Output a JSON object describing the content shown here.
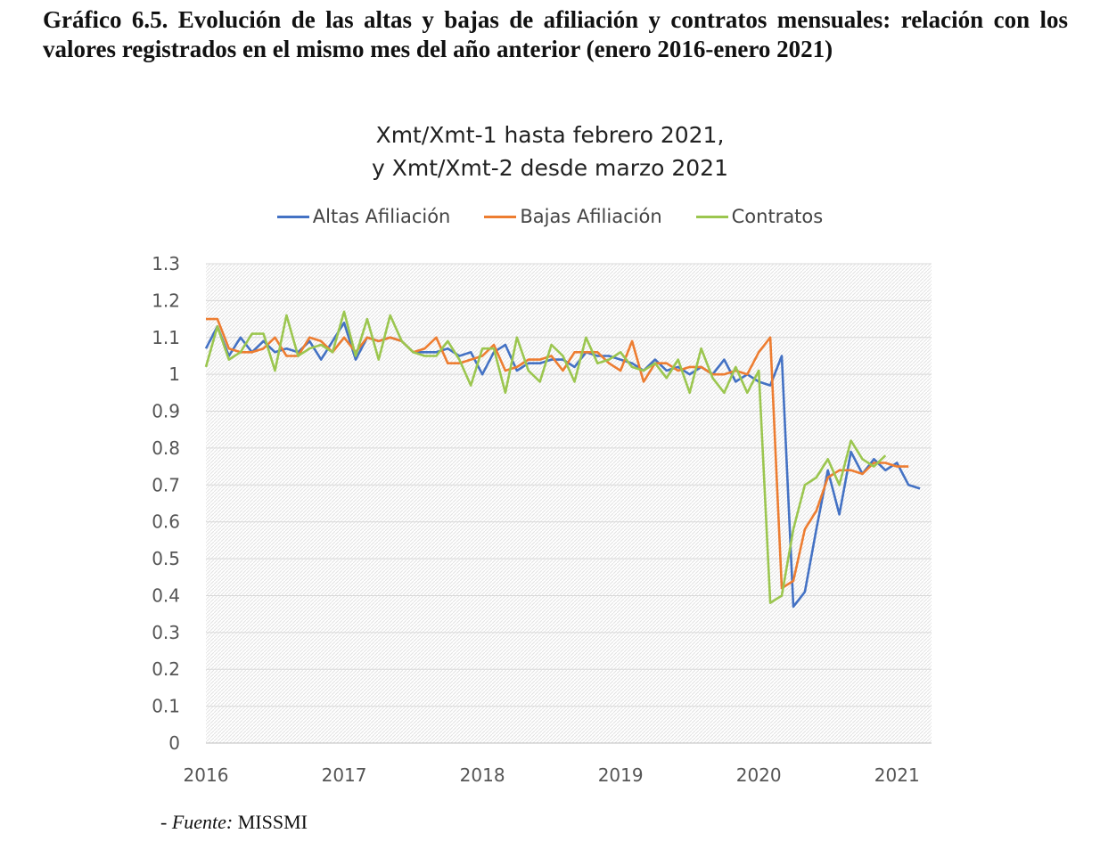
{
  "heading": "Gráfico 6.5. Evolución de las altas y bajas de afiliación y contratos mensuales: relación con los valores registrados en el mismo mes del año anterior (enero 2016-enero 2021)",
  "source": {
    "prefix": "- ",
    "label": "Fuente:",
    "value": " MISSMI"
  },
  "colors": {
    "altas": "#4472C4",
    "bajas": "#ED7D31",
    "contratos": "#9BC64F",
    "grid": "#d9d9d9"
  },
  "chart_data": {
    "type": "line",
    "title": [
      "Xmt/Xmt-1 hasta febrero 2021,",
      "y Xmt/Xmt-2 desde marzo 2021"
    ],
    "xlabel": "",
    "ylabel": "",
    "ylim": [
      0,
      1.3
    ],
    "xlim": [
      2016,
      2021.25
    ],
    "yticks": [
      "0",
      "0.1",
      "0.2",
      "0.3",
      "0.4",
      "0.5",
      "0.6",
      "0.7",
      "0.8",
      "0.9",
      "1",
      "1.1",
      "1.2",
      "1.3"
    ],
    "xticks": [
      "2016",
      "2017",
      "2018",
      "2019",
      "2020",
      "2021"
    ],
    "grid": true,
    "legend_position": "top",
    "x_start": "2016-01",
    "series": [
      {
        "name": "Altas Afiliación",
        "color": "#4472C4",
        "values": [
          1.07,
          1.13,
          1.05,
          1.1,
          1.06,
          1.09,
          1.06,
          1.07,
          1.06,
          1.09,
          1.04,
          1.09,
          1.14,
          1.04,
          1.1,
          1.09,
          1.1,
          1.09,
          1.06,
          1.06,
          1.06,
          1.07,
          1.05,
          1.06,
          1.0,
          1.06,
          1.08,
          1.01,
          1.03,
          1.03,
          1.04,
          1.04,
          1.02,
          1.06,
          1.05,
          1.05,
          1.04,
          1.03,
          1.01,
          1.04,
          1.01,
          1.02,
          1.0,
          1.02,
          1.0,
          1.04,
          0.98,
          1.0,
          0.98,
          0.97,
          1.05,
          0.37,
          0.41,
          0.58,
          0.74,
          0.62,
          0.79,
          0.73,
          0.77,
          0.74,
          0.76,
          0.7,
          0.69
        ]
      },
      {
        "name": "Bajas Afiliación",
        "color": "#ED7D31",
        "values": [
          1.15,
          1.15,
          1.07,
          1.06,
          1.06,
          1.07,
          1.1,
          1.05,
          1.05,
          1.1,
          1.09,
          1.06,
          1.1,
          1.06,
          1.1,
          1.09,
          1.1,
          1.09,
          1.06,
          1.07,
          1.1,
          1.03,
          1.03,
          1.04,
          1.05,
          1.08,
          1.01,
          1.02,
          1.04,
          1.04,
          1.05,
          1.01,
          1.06,
          1.06,
          1.06,
          1.03,
          1.01,
          1.09,
          0.98,
          1.03,
          1.03,
          1.01,
          1.02,
          1.02,
          1.0,
          1.0,
          1.01,
          1.0,
          1.06,
          1.1,
          0.42,
          0.44,
          0.58,
          0.63,
          0.72,
          0.74,
          0.74,
          0.73,
          0.76,
          0.76,
          0.75,
          0.75
        ]
      },
      {
        "name": "Contratos",
        "color": "#9BC64F",
        "values": [
          1.02,
          1.13,
          1.04,
          1.06,
          1.11,
          1.11,
          1.01,
          1.16,
          1.05,
          1.07,
          1.08,
          1.06,
          1.17,
          1.05,
          1.15,
          1.04,
          1.16,
          1.09,
          1.06,
          1.05,
          1.05,
          1.09,
          1.04,
          0.97,
          1.07,
          1.07,
          0.95,
          1.1,
          1.01,
          0.98,
          1.08,
          1.05,
          0.98,
          1.1,
          1.03,
          1.04,
          1.06,
          1.02,
          1.01,
          1.03,
          0.99,
          1.04,
          0.95,
          1.07,
          0.99,
          0.95,
          1.02,
          0.95,
          1.01,
          0.38,
          0.4,
          0.58,
          0.7,
          0.72,
          0.77,
          0.7,
          0.82,
          0.77,
          0.75,
          0.78
        ]
      }
    ]
  }
}
